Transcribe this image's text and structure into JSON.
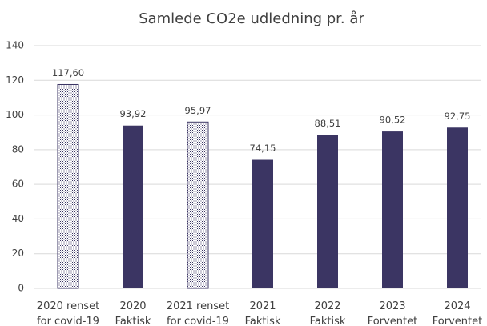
{
  "chart_data": {
    "type": "bar",
    "title": "Samlede CO2e udledning pr. år",
    "categories": [
      "2020 renset\nfor covid-19",
      "2020\nFaktisk",
      "2021 renset\nfor covid-19",
      "2021\nFaktisk",
      "2022\nFaktisk",
      "2023\nForventet",
      "2024\nForventet"
    ],
    "values": [
      117.6,
      93.92,
      95.97,
      74.15,
      88.51,
      90.52,
      92.75
    ],
    "value_labels": [
      "117,60",
      "93,92",
      "95,97",
      "74,15",
      "88,51",
      "90,52",
      "92,75"
    ],
    "color": "#3b3563",
    "patterns": [
      "dots",
      "solid",
      "dots",
      "solid",
      "solid",
      "solid",
      "solid"
    ],
    "ylim": [
      0,
      140
    ],
    "yticks": [
      0,
      20,
      40,
      60,
      80,
      100,
      120,
      140
    ],
    "grid": true
  }
}
